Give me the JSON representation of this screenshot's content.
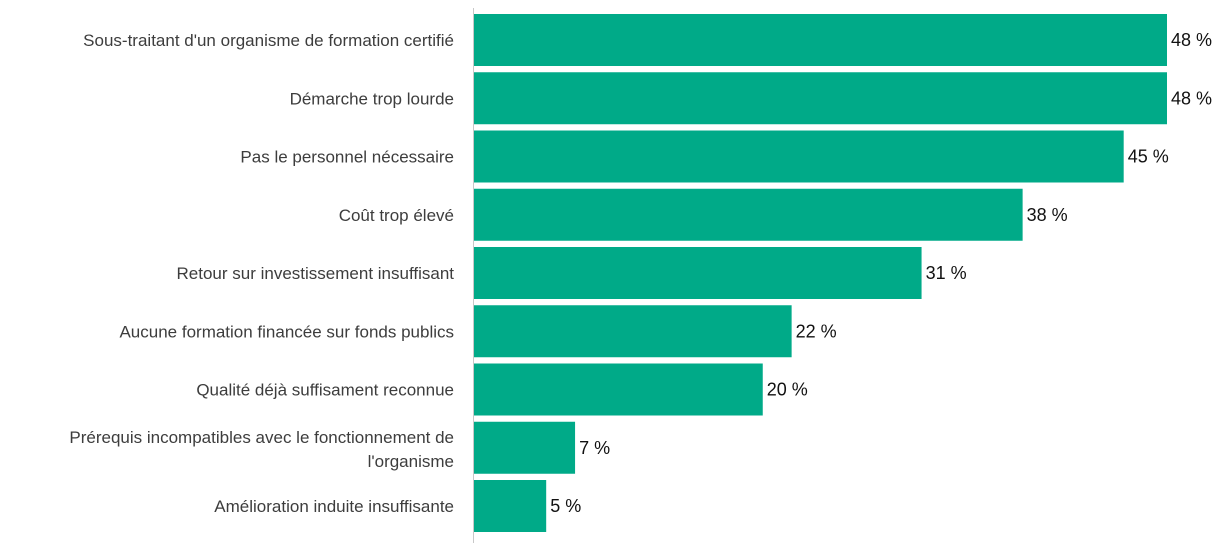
{
  "chart_data": {
    "type": "bar",
    "orientation": "horizontal",
    "categories": [
      "Sous-traitant d'un organisme de formation certifié",
      "Démarche trop lourde",
      "Pas le personnel nécessaire",
      "Coût trop élevé",
      "Retour sur investissement insuffisant",
      "Aucune formation financée sur fonds publics",
      "Qualité déjà suffisament reconnue",
      "Prérequis incompatibles avec le fonctionnement de l'organisme",
      "Amélioration induite insuffisante"
    ],
    "values": [
      48,
      48,
      45,
      38,
      31,
      22,
      20,
      7,
      5
    ],
    "value_labels": [
      "48 %",
      "48 %",
      "45 %",
      "38 %",
      "31 %",
      "22 %",
      "20 %",
      "7 %",
      "5 %"
    ],
    "bar_color": "#00aa88",
    "xlim": [
      0,
      48
    ],
    "grid": false,
    "legend": "none"
  }
}
